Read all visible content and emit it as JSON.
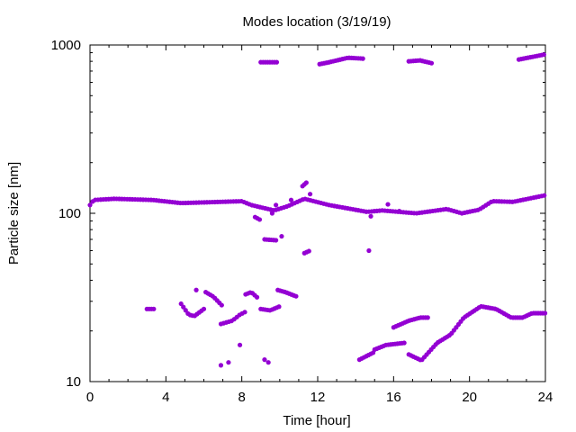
{
  "chart_data": {
    "type": "scatter",
    "title": "Modes location (3/19/19)",
    "xlabel": "Time [hour]",
    "ylabel": "Particle size [nm]",
    "xlim": [
      0,
      24
    ],
    "ylim": [
      10,
      1000
    ],
    "yscale": "log",
    "grid": false,
    "marker_color": "#9400d3",
    "xticks": [
      0,
      4,
      8,
      12,
      16,
      20,
      24
    ],
    "xtick_labels": [
      "0",
      "4",
      "8",
      "12",
      "16",
      "20",
      "24"
    ],
    "yticks": [
      10,
      100,
      1000
    ],
    "ytick_labels": [
      "10",
      "100",
      "1000"
    ],
    "series": [
      {
        "segments": [
          [
            [
              0,
              112
            ],
            [
              24,
              128
            ],
            0.14,
            {
              "at": [
                [
                  0.2,
                  120
                ],
                [
                  1.3,
                  122
                ],
                [
                  3.3,
                  120
                ],
                [
                  4.8,
                  115
                ],
                [
                  8.0,
                  118
                ],
                [
                  8.5,
                  112
                ],
                [
                  9.7,
                  104
                ],
                [
                  10.4,
                  110
                ],
                [
                  11.3,
                  122
                ],
                [
                  12.6,
                  112
                ],
                [
                  14.6,
                  102
                ],
                [
                  15.4,
                  104
                ],
                [
                  17.2,
                  100
                ],
                [
                  18.8,
                  106
                ],
                [
                  19.6,
                  100
                ],
                [
                  20.5,
                  105
                ],
                [
                  21.2,
                  118
                ],
                [
                  22.3,
                  117
                ]
              ]
            }
          ],
          [
            [
              9.0,
              790
            ],
            [
              9.9,
              790
            ],
            0.12,
            {
              "at": []
            }
          ],
          [
            [
              12.1,
              770
            ],
            [
              14.4,
              830
            ],
            0.12,
            {
              "at": [
                [
                  12.6,
                  790
                ],
                [
                  13.6,
                  840
                ]
              ]
            }
          ],
          [
            [
              16.8,
              800
            ],
            [
              18.0,
              780
            ],
            0.12,
            {
              "at": [
                [
                  17.4,
                  810
                ]
              ]
            }
          ],
          [
            [
              22.6,
              820
            ],
            [
              24.0,
              880
            ],
            0.12,
            {
              "at": []
            }
          ],
          [
            [
              3.0,
              27
            ],
            [
              3.4,
              27
            ],
            0.12,
            {
              "at": []
            }
          ],
          [
            [
              4.8,
              29
            ],
            [
              6.0,
              27
            ],
            0.12,
            {
              "at": [
                [
                  5.2,
                  25
                ],
                [
                  5.5,
                  24.5
                ]
              ]
            }
          ],
          [
            [
              6.1,
              34
            ],
            [
              7.0,
              28
            ],
            0.12,
            {
              "at": [
                [
                  6.5,
                  32
                ]
              ]
            }
          ],
          [
            [
              6.9,
              22
            ],
            [
              8.2,
              26
            ],
            0.14,
            {
              "at": [
                [
                  7.5,
                  23
                ],
                [
                  7.9,
                  25
                ]
              ]
            }
          ],
          [
            [
              8.2,
              33
            ],
            [
              8.9,
              31
            ],
            0.12,
            {
              "at": [
                [
                  8.5,
                  34
                ]
              ]
            }
          ],
          [
            [
              9.0,
              27
            ],
            [
              10.0,
              28
            ],
            0.12,
            {
              "at": [
                [
                  9.5,
                  26.5
                ]
              ]
            }
          ],
          [
            [
              9.9,
              35
            ],
            [
              10.9,
              32
            ],
            0.12,
            {
              "at": [
                [
                  10.3,
                  34
                ]
              ]
            }
          ],
          [
            [
              8.7,
              95
            ],
            [
              9.0,
              91
            ],
            0.12,
            {
              "at": []
            }
          ],
          [
            [
              9.2,
              70
            ],
            [
              9.9,
              69
            ],
            0.12,
            {
              "at": []
            }
          ],
          [
            [
              11.3,
              58
            ],
            [
              11.6,
              60
            ],
            0.12,
            {
              "at": []
            }
          ],
          [
            [
              11.2,
              145
            ],
            [
              11.4,
              152
            ],
            0.1,
            {
              "at": []
            }
          ],
          [
            [
              14.2,
              13.5
            ],
            [
              15.0,
              15
            ],
            0.12,
            {
              "at": []
            }
          ],
          [
            [
              15.0,
              15.5
            ],
            [
              16.6,
              17
            ],
            0.12,
            {
              "at": [
                [
                  15.6,
                  16.5
                ]
              ]
            }
          ],
          [
            [
              16.8,
              14.5
            ],
            [
              17.5,
              13.3
            ],
            0.12,
            {
              "at": []
            }
          ],
          [
            [
              16.0,
              21
            ],
            [
              17.9,
              24
            ],
            0.12,
            {
              "at": [
                [
                  16.8,
                  23
                ],
                [
                  17.4,
                  24
                ]
              ]
            }
          ],
          [
            [
              17.5,
              13.5
            ],
            [
              24.0,
              25.5
            ],
            0.12,
            {
              "at": [
                [
                  18.3,
                  17
                ],
                [
                  19.0,
                  19
                ],
                [
                  19.7,
                  24
                ],
                [
                  20.6,
                  28
                ],
                [
                  21.4,
                  27
                ],
                [
                  22.2,
                  24
                ],
                [
                  22.8,
                  24
                ],
                [
                  23.3,
                  25.5
                ]
              ]
            }
          ]
        ],
        "points": [
          [
            14.7,
            60
          ],
          [
            15.7,
            113
          ],
          [
            14.8,
            96
          ],
          [
            5.6,
            35
          ],
          [
            6.9,
            12.5
          ],
          [
            7.3,
            13
          ],
          [
            7.9,
            16.5
          ],
          [
            9.2,
            13.5
          ],
          [
            9.4,
            13
          ],
          [
            10.1,
            73
          ],
          [
            9.6,
            100
          ],
          [
            9.8,
            112
          ],
          [
            10.6,
            120
          ],
          [
            11.6,
            130
          ],
          [
            16.3,
            103
          ]
        ]
      }
    ]
  }
}
